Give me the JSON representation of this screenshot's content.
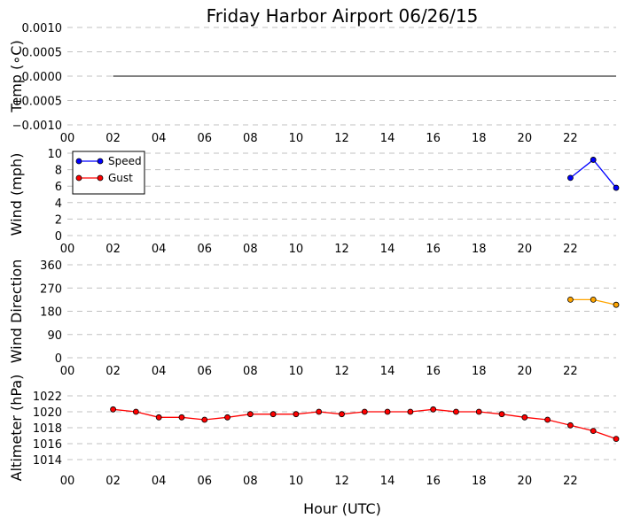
{
  "figure": {
    "title": "Friday Harbor Airport 06/26/15",
    "xlabel": "Hour (UTC)",
    "xtick_labels": [
      "00",
      "02",
      "04",
      "06",
      "08",
      "10",
      "12",
      "14",
      "16",
      "18",
      "20",
      "22"
    ]
  },
  "chart_data": [
    {
      "type": "line",
      "ylabel": "Temp (°C)",
      "ylabel_display": "Temp (∘C)",
      "xlim": [
        0,
        24
      ],
      "ylim": [
        -0.001,
        0.001
      ],
      "yticks": [
        -0.001,
        -0.0005,
        0,
        0.0005,
        0.001
      ],
      "ytick_labels": [
        "−0.0010",
        "−0.0005",
        "0.0000",
        "0.0005",
        "0.0010"
      ],
      "grid": true,
      "series": [
        {
          "color": "#000000",
          "marker": "none",
          "x": [
            2,
            24
          ],
          "values": [
            0,
            0
          ]
        }
      ]
    },
    {
      "type": "line",
      "ylabel": "Wind (mph)",
      "xlim": [
        0,
        24
      ],
      "ylim": [
        0,
        10
      ],
      "yticks": [
        0,
        2,
        4,
        6,
        8,
        10
      ],
      "ytick_labels": [
        "0",
        "2",
        "4",
        "6",
        "8",
        "10"
      ],
      "grid": true,
      "legend_position": "top-left",
      "series": [
        {
          "name": "Speed",
          "color": "#0000ff",
          "marker": "circle",
          "x": [
            22,
            23,
            24
          ],
          "values": [
            7,
            9.2,
            5.8
          ]
        },
        {
          "name": "Gust",
          "color": "#ff0000",
          "marker": "circle",
          "x": [],
          "values": []
        }
      ]
    },
    {
      "type": "line",
      "ylabel": "Wind Direction",
      "xlim": [
        0,
        24
      ],
      "ylim": [
        0,
        360
      ],
      "yticks": [
        0,
        90,
        180,
        270,
        360
      ],
      "ytick_labels": [
        "0",
        "90",
        "180",
        "270",
        "360"
      ],
      "grid": true,
      "series": [
        {
          "color": "#ffa500",
          "marker": "circle",
          "x": [
            22,
            23,
            24
          ],
          "values": [
            225,
            225,
            205
          ]
        }
      ]
    },
    {
      "type": "line",
      "ylabel": "Altimeter (hPa)",
      "xlim": [
        0,
        24
      ],
      "ylim": [
        1013,
        1023
      ],
      "yticks": [
        1014,
        1016,
        1018,
        1020,
        1022
      ],
      "ytick_labels": [
        "1014",
        "1016",
        "1018",
        "1020",
        "1022"
      ],
      "grid": true,
      "series": [
        {
          "color": "#ff0000",
          "marker": "circle",
          "x": [
            2,
            3,
            4,
            5,
            6,
            7,
            8,
            9,
            10,
            11,
            12,
            13,
            14,
            15,
            16,
            17,
            18,
            19,
            20,
            21,
            22,
            23,
            24
          ],
          "values": [
            1020.3,
            1020.0,
            1019.3,
            1019.3,
            1019.0,
            1019.3,
            1019.7,
            1019.7,
            1019.7,
            1020.0,
            1019.7,
            1020.0,
            1020.0,
            1020.0,
            1020.3,
            1020.0,
            1020.0,
            1019.7,
            1019.3,
            1019.0,
            1018.3,
            1017.6,
            1016.6
          ]
        }
      ]
    }
  ]
}
